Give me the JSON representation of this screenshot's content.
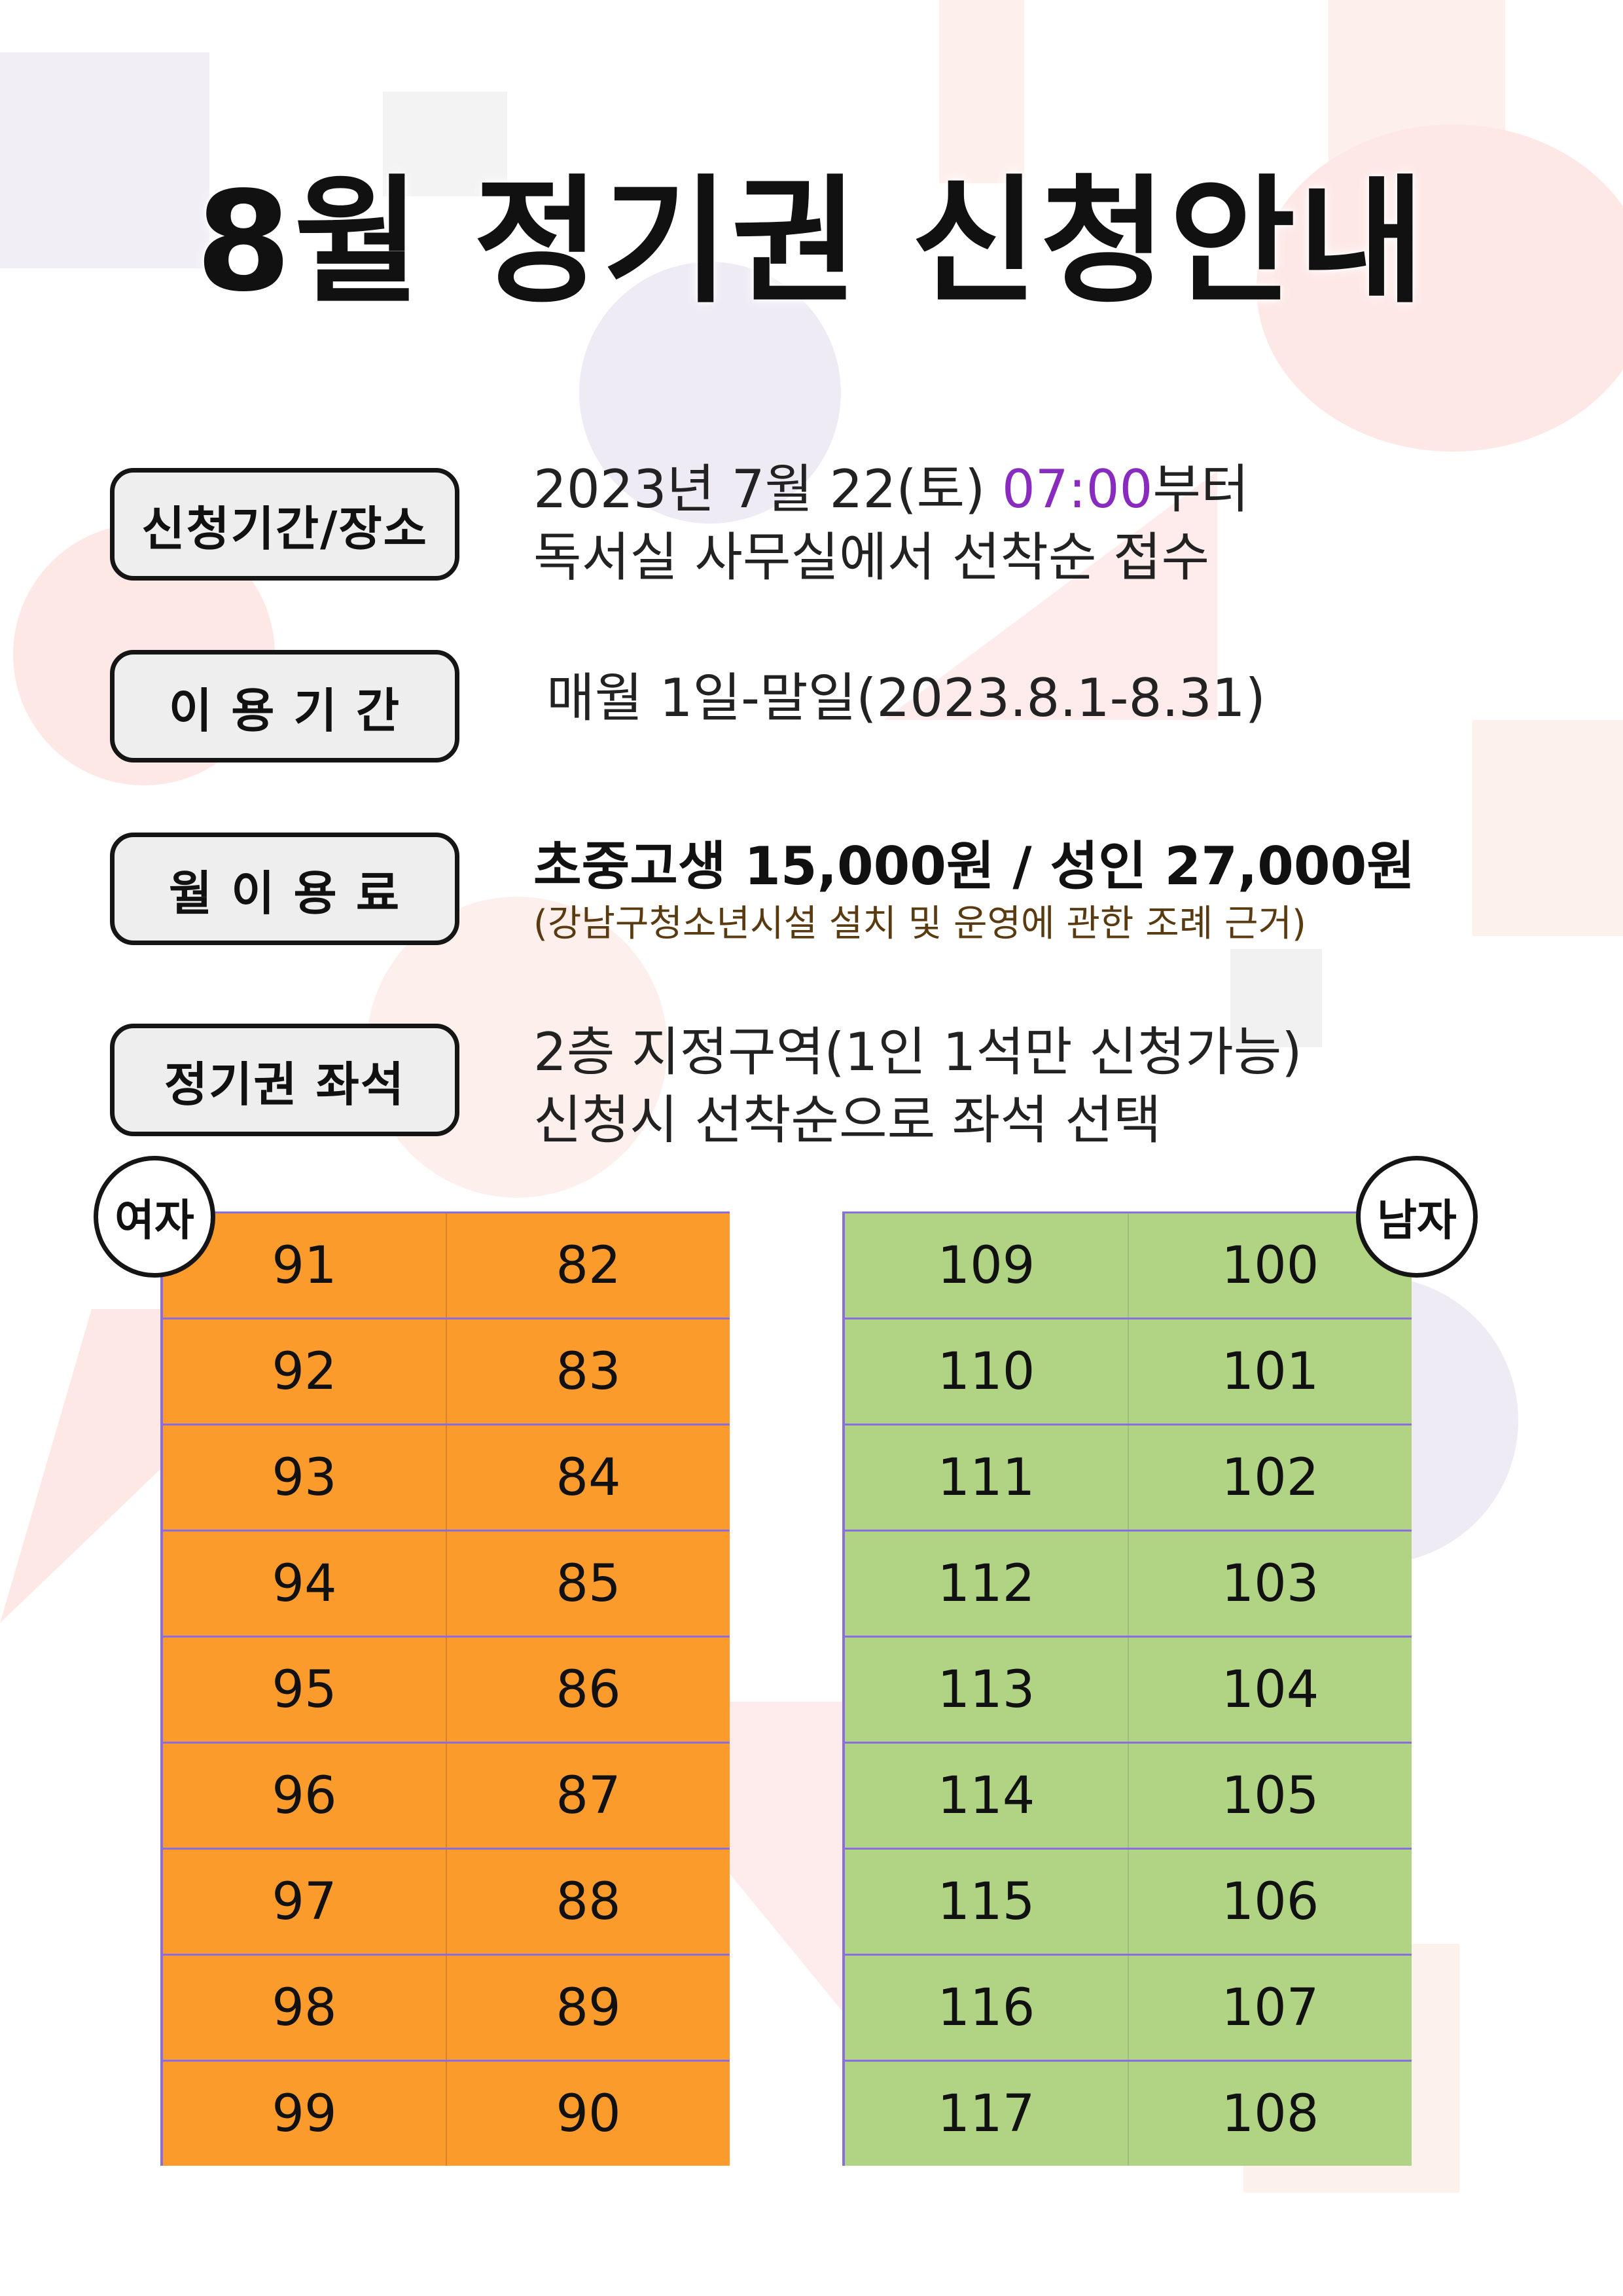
{
  "title": "8월 정기권 신청안내",
  "sections": [
    {
      "label": "신청기간/장소",
      "lines": [
        "2023년 7월 22(토) ",
        "07:00",
        "부터",
        "독서실 사무실에서 선착순 접수"
      ]
    },
    {
      "label": "이 용 기 간",
      "lines": [
        "매월 1일-말일(2023.8.1-8.31)"
      ]
    },
    {
      "label": "월 이 용 료",
      "lines": [
        "초중고생 15,000원 / 성인 27,000원",
        "(강남구청소년시설 설치 및 운영에 관한 조례 근거)"
      ]
    },
    {
      "label": "정기권 좌석",
      "lines": [
        "2층 지정구역(1인 1석만 신청가능)",
        "신청시 선착순으로 좌석 선택"
      ]
    }
  ],
  "female": {
    "label": "여자",
    "rows": [
      [
        "91",
        "82"
      ],
      [
        "92",
        "83"
      ],
      [
        "93",
        "84"
      ],
      [
        "94",
        "85"
      ],
      [
        "95",
        "86"
      ],
      [
        "96",
        "87"
      ],
      [
        "97",
        "88"
      ],
      [
        "98",
        "89"
      ],
      [
        "99",
        "90"
      ]
    ]
  },
  "male": {
    "label": "남자",
    "rows": [
      [
        "109",
        "100"
      ],
      [
        "110",
        "101"
      ],
      [
        "111",
        "102"
      ],
      [
        "112",
        "103"
      ],
      [
        "113",
        "104"
      ],
      [
        "114",
        "105"
      ],
      [
        "115",
        "106"
      ],
      [
        "116",
        "107"
      ],
      [
        "117",
        "108"
      ]
    ]
  },
  "colors": {
    "accent": "#8a2bbf",
    "female_cells": "#fb9b2b",
    "male_cells": "#b0d484"
  }
}
